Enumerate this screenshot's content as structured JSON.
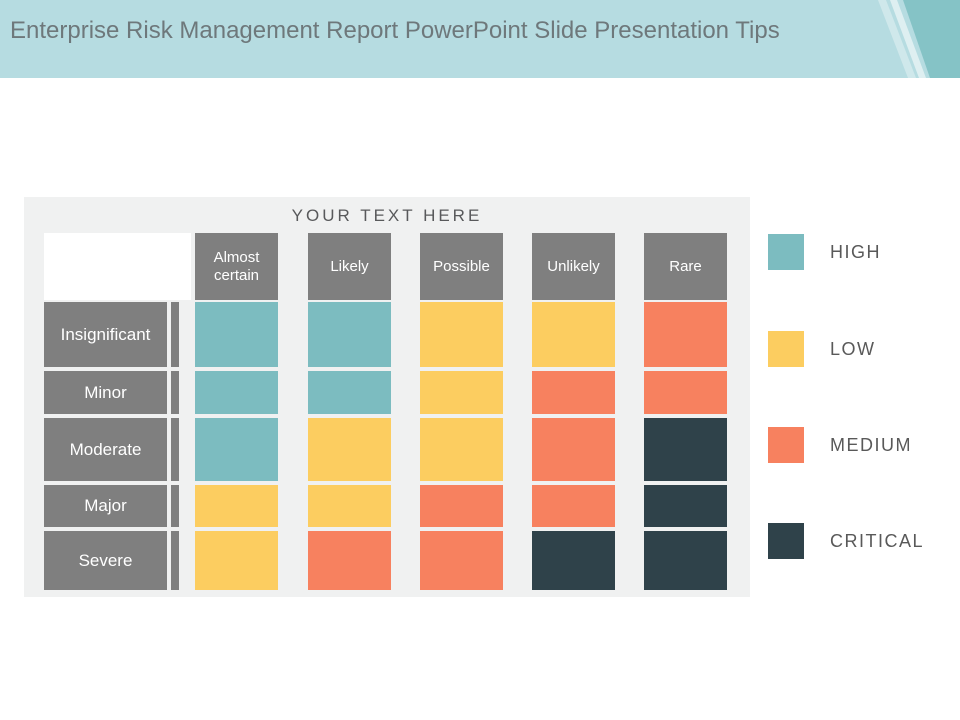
{
  "slide": {
    "title": "Enterprise Risk Management Report PowerPoint Slide Presentation Tips"
  },
  "chart_data": {
    "type": "heatmap",
    "title": "YOUR TEXT HERE",
    "columns": [
      "Almost certain",
      "Likely",
      "Possible",
      "Unlikely",
      "Rare"
    ],
    "rows": [
      "Insignificant",
      "Minor",
      "Moderate",
      "Major",
      "Severe"
    ],
    "cells": [
      [
        "high",
        "high",
        "low",
        "low",
        "medium"
      ],
      [
        "high",
        "high",
        "low",
        "medium",
        "medium"
      ],
      [
        "high",
        "low",
        "low",
        "medium",
        "critical"
      ],
      [
        "low",
        "low",
        "medium",
        "medium",
        "critical"
      ],
      [
        "low",
        "medium",
        "medium",
        "critical",
        "critical"
      ]
    ],
    "levels": {
      "high": "#7cbcc0",
      "low": "#fccd60",
      "medium": "#f7815f",
      "critical": "#2f424a"
    },
    "legend_position": "right",
    "grid": false
  },
  "legend": {
    "items": [
      {
        "label": "HIGH",
        "level": "high",
        "color": "#7cbcc0"
      },
      {
        "label": "LOW",
        "level": "low",
        "color": "#fccd60"
      },
      {
        "label": "MEDIUM",
        "level": "medium",
        "color": "#f7815f"
      },
      {
        "label": "CRITICAL",
        "level": "critical",
        "color": "#2f424a"
      }
    ]
  },
  "colors": {
    "header_band": "#b6dce1",
    "corner_accent": "#85c3c6",
    "panel_background": "#f0f1f1",
    "header_box": "#7f7f7f",
    "title_text": "#6e787b",
    "heading_text": "#58595b",
    "legend_text": "#595959"
  }
}
